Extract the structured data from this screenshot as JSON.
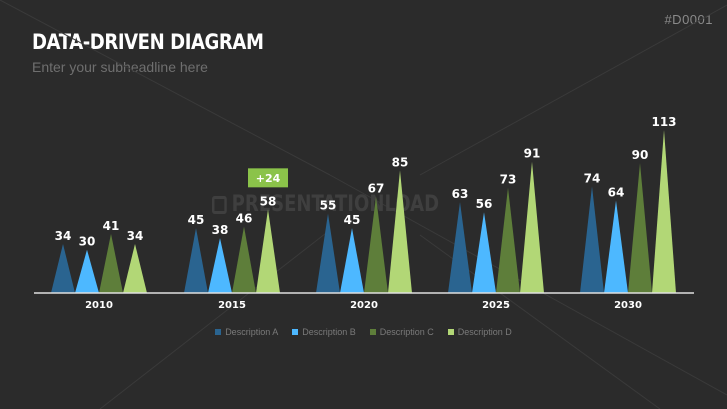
{
  "slide": {
    "title": "Data-Driven Diagram",
    "subtitle": "Enter your subheadline here",
    "slide_id": "#D0001",
    "watermark": "PRESENTATIONLOAD"
  },
  "chart_data": {
    "type": "bar",
    "bar_shape": "triangle",
    "categories": [
      "2010",
      "2015",
      "2020",
      "2025",
      "2030"
    ],
    "series": [
      {
        "name": "Description A",
        "color": "#2a6490",
        "values": [
          34,
          45,
          55,
          63,
          74
        ]
      },
      {
        "name": "Description B",
        "color": "#4db8ff",
        "values": [
          30,
          38,
          45,
          56,
          64
        ]
      },
      {
        "name": "Description C",
        "color": "#5e7e3a",
        "values": [
          41,
          46,
          67,
          73,
          90
        ]
      },
      {
        "name": "Description D",
        "color": "#b2d776",
        "values": [
          34,
          58,
          85,
          91,
          113
        ]
      }
    ],
    "annotation": {
      "text": "+24",
      "category": "2015",
      "series": "Description D",
      "color": "#8bc34a"
    },
    "ylim": [
      0,
      113
    ],
    "grid": false,
    "legend_position": "bottom"
  }
}
